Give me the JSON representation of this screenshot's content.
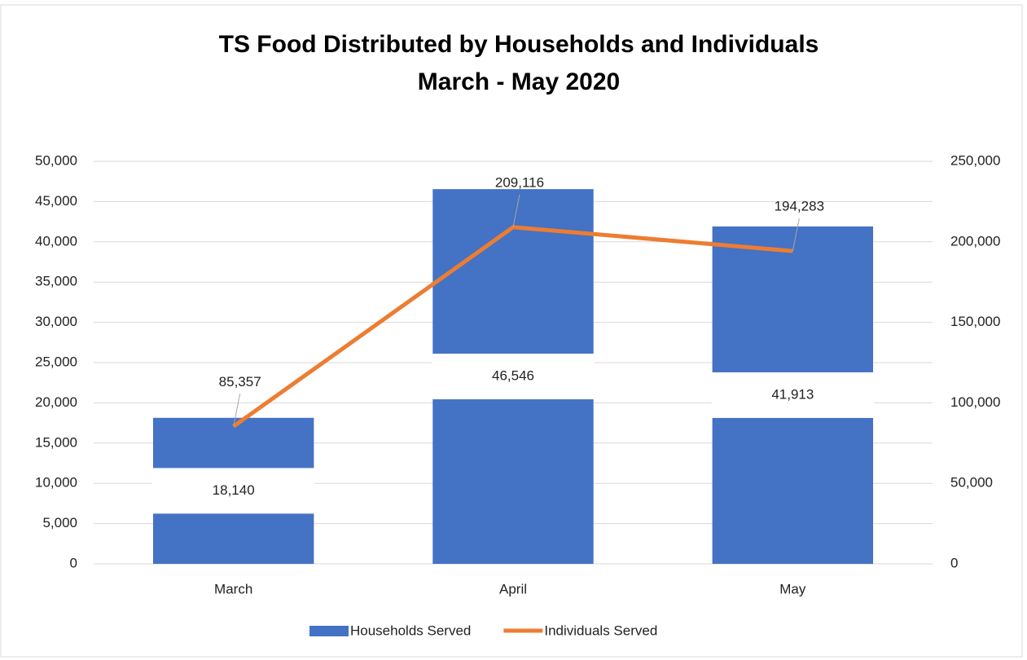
{
  "chart_data": {
    "type": "bar-line",
    "title": "TS Food Distributed by Households and Individuals",
    "subtitle": "March - May 2020",
    "categories": [
      "March",
      "April",
      "May"
    ],
    "series": [
      {
        "name": "Households Served",
        "type": "bar",
        "color": "#4472c4",
        "values": [
          18140,
          46546,
          41913
        ],
        "value_labels": [
          "18,140",
          "46,546",
          "41,913"
        ]
      },
      {
        "name": "Individuals Served",
        "type": "line",
        "axis": "y2",
        "color": "#ed7d31",
        "values": [
          85357,
          209116,
          194283
        ],
        "value_labels": [
          "85,357",
          "209,116",
          "194,283"
        ]
      }
    ],
    "ylim": [
      0,
      50000
    ],
    "yticks": [
      0,
      {
        "value": 5000,
        "label": "5,000"
      },
      {
        "value": 10000,
        "label": "10,000"
      },
      {
        "value": 15000,
        "label": "15,000"
      },
      {
        "value": 20000,
        "label": "20,000"
      },
      {
        "value": 25000,
        "label": "25,000"
      },
      {
        "value": 30000,
        "label": "30,000"
      },
      {
        "value": 35000,
        "label": "35,000"
      },
      {
        "value": 40000,
        "label": "40,000"
      },
      {
        "value": 45000,
        "label": "45,000"
      },
      {
        "value": 50000,
        "label": "50,000"
      }
    ],
    "y2lim": [
      0,
      250000
    ],
    "y2ticks": [
      0,
      {
        "value": 50000,
        "label": "50,000"
      },
      {
        "value": 100000,
        "label": "100,000"
      },
      {
        "value": 150000,
        "label": "150,000"
      },
      {
        "value": 200000,
        "label": "200,000"
      },
      {
        "value": 250000,
        "label": "250,000"
      }
    ],
    "grid": true,
    "legend": "bottom"
  }
}
